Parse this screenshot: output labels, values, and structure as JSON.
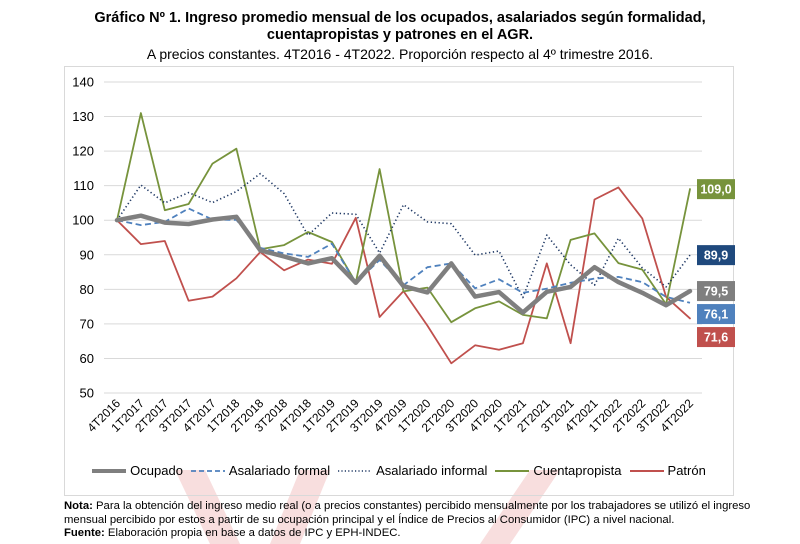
{
  "title_line1": "Gráfico Nº 1. Ingreso promedio mensual de los ocupados, asalariados según formalidad,",
  "title_line2": "cuentapropistas y patrones en el AGR.",
  "subtitle": "A precios constantes. 4T2016 - 4T2022. Proporción respecto al 4º trimestre 2016.",
  "note_label": "Nota:",
  "note_text": " Para la obtención del ingreso medio real (o a precios constantes) percibido mensualmente por los trabajadores se utilizó el ingreso mensual percibido por estos a partir de su ocupación principal y el Índice de Precios al Consumidor (IPC) a nivel nacional.",
  "source_label": "Fuente:",
  "source_text": " Elaboración propia en base a datos de IPC y EPH-INDEC.",
  "chart_data": {
    "type": "line",
    "title": "Gráfico Nº 1. Ingreso promedio mensual de los ocupados, asalariados según formalidad, cuentapropistas y patrones en el AGR.",
    "subtitle": "A precios constantes. 4T2016 - 4T2022. Proporción respecto al 4º trimestre 2016.",
    "xlabel": "",
    "ylabel": "",
    "ylim": [
      50,
      140
    ],
    "yticks": [
      "50",
      "60",
      "70",
      "80",
      "90",
      "100",
      "110",
      "120",
      "130",
      "140"
    ],
    "ytick_values": [
      50,
      60,
      70,
      80,
      90,
      100,
      110,
      120,
      130,
      140
    ],
    "grid": true,
    "legend_position": "bottom",
    "categories": [
      "4T2016",
      "1T2017",
      "2T2017",
      "3T2017",
      "4T2017",
      "1T2018",
      "2T2018",
      "3T2018",
      "4T2018",
      "1T2019",
      "2T2019",
      "3T2019",
      "4T2019",
      "1T2020",
      "2T2020",
      "3T2020",
      "4T2020",
      "1T2021",
      "2T2021",
      "3T2021",
      "4T2021",
      "1T2022",
      "2T2022",
      "3T2022",
      "4T2022"
    ],
    "series": [
      {
        "name": "Ocupado",
        "color": "#7f7f7f",
        "style": "thick",
        "values": [
          100,
          101.3,
          99.3,
          98.9,
          100.2,
          101.0,
          91.3,
          89.5,
          87.5,
          89.0,
          81.9,
          89.7,
          80.9,
          79.1,
          87.5,
          77.9,
          79.2,
          73.3,
          79.3,
          80.7,
          86.4,
          82.1,
          79.0,
          75.4,
          79.5
        ],
        "end_label": "79,5"
      },
      {
        "name": "Asalariado formal",
        "color": "#4f81bd",
        "style": "dashed",
        "values": [
          100,
          98.6,
          99.5,
          103.4,
          100.2,
          100.1,
          92.0,
          90.4,
          89.4,
          93.2,
          81.9,
          88.5,
          81.2,
          86.4,
          87.5,
          80.3,
          82.9,
          79.0,
          80.2,
          81.9,
          83.1,
          83.6,
          82.1,
          77.8,
          76.1
        ],
        "end_label": "76,1"
      },
      {
        "name": "Asalariado informal",
        "color": "#1f3864",
        "style": "dotted",
        "values": [
          100,
          110.2,
          105.0,
          108.0,
          105.1,
          108.3,
          113.5,
          107.7,
          95.6,
          102.1,
          101.7,
          90.5,
          104.5,
          99.5,
          99.0,
          89.9,
          91.1,
          77.6,
          95.7,
          87.1,
          81.2,
          94.8,
          86.2,
          80.7,
          89.9
        ],
        "end_label": "89,9"
      },
      {
        "name": "Cuentapropista",
        "color": "#77933c",
        "style": "solid",
        "values": [
          100,
          131.0,
          102.9,
          104.7,
          116.4,
          120.7,
          91.6,
          92.8,
          96.6,
          93.7,
          82.0,
          114.8,
          79.4,
          80.5,
          70.5,
          74.5,
          76.5,
          72.6,
          71.6,
          94.3,
          96.2,
          87.6,
          85.7,
          75.7,
          109.0
        ],
        "end_label": "109,0"
      },
      {
        "name": "Patrón",
        "color": "#c0504d",
        "style": "solid",
        "values": [
          100,
          93.1,
          94.0,
          76.7,
          77.9,
          83.2,
          90.8,
          85.5,
          88.6,
          87.4,
          100.7,
          72.0,
          79.5,
          69.5,
          58.6,
          63.8,
          62.5,
          64.4,
          87.5,
          64.4,
          106.0,
          109.5,
          100.5,
          77.8,
          71.6
        ],
        "end_label": "71,6"
      }
    ],
    "end_label_fills": {
      "Ocupado": "#7f7f7f",
      "Asalariado formal": "#4f81bd",
      "Asalariado informal": "#1f497d",
      "Cuentapropista": "#77933c",
      "Patrón": "#c0504d"
    }
  }
}
